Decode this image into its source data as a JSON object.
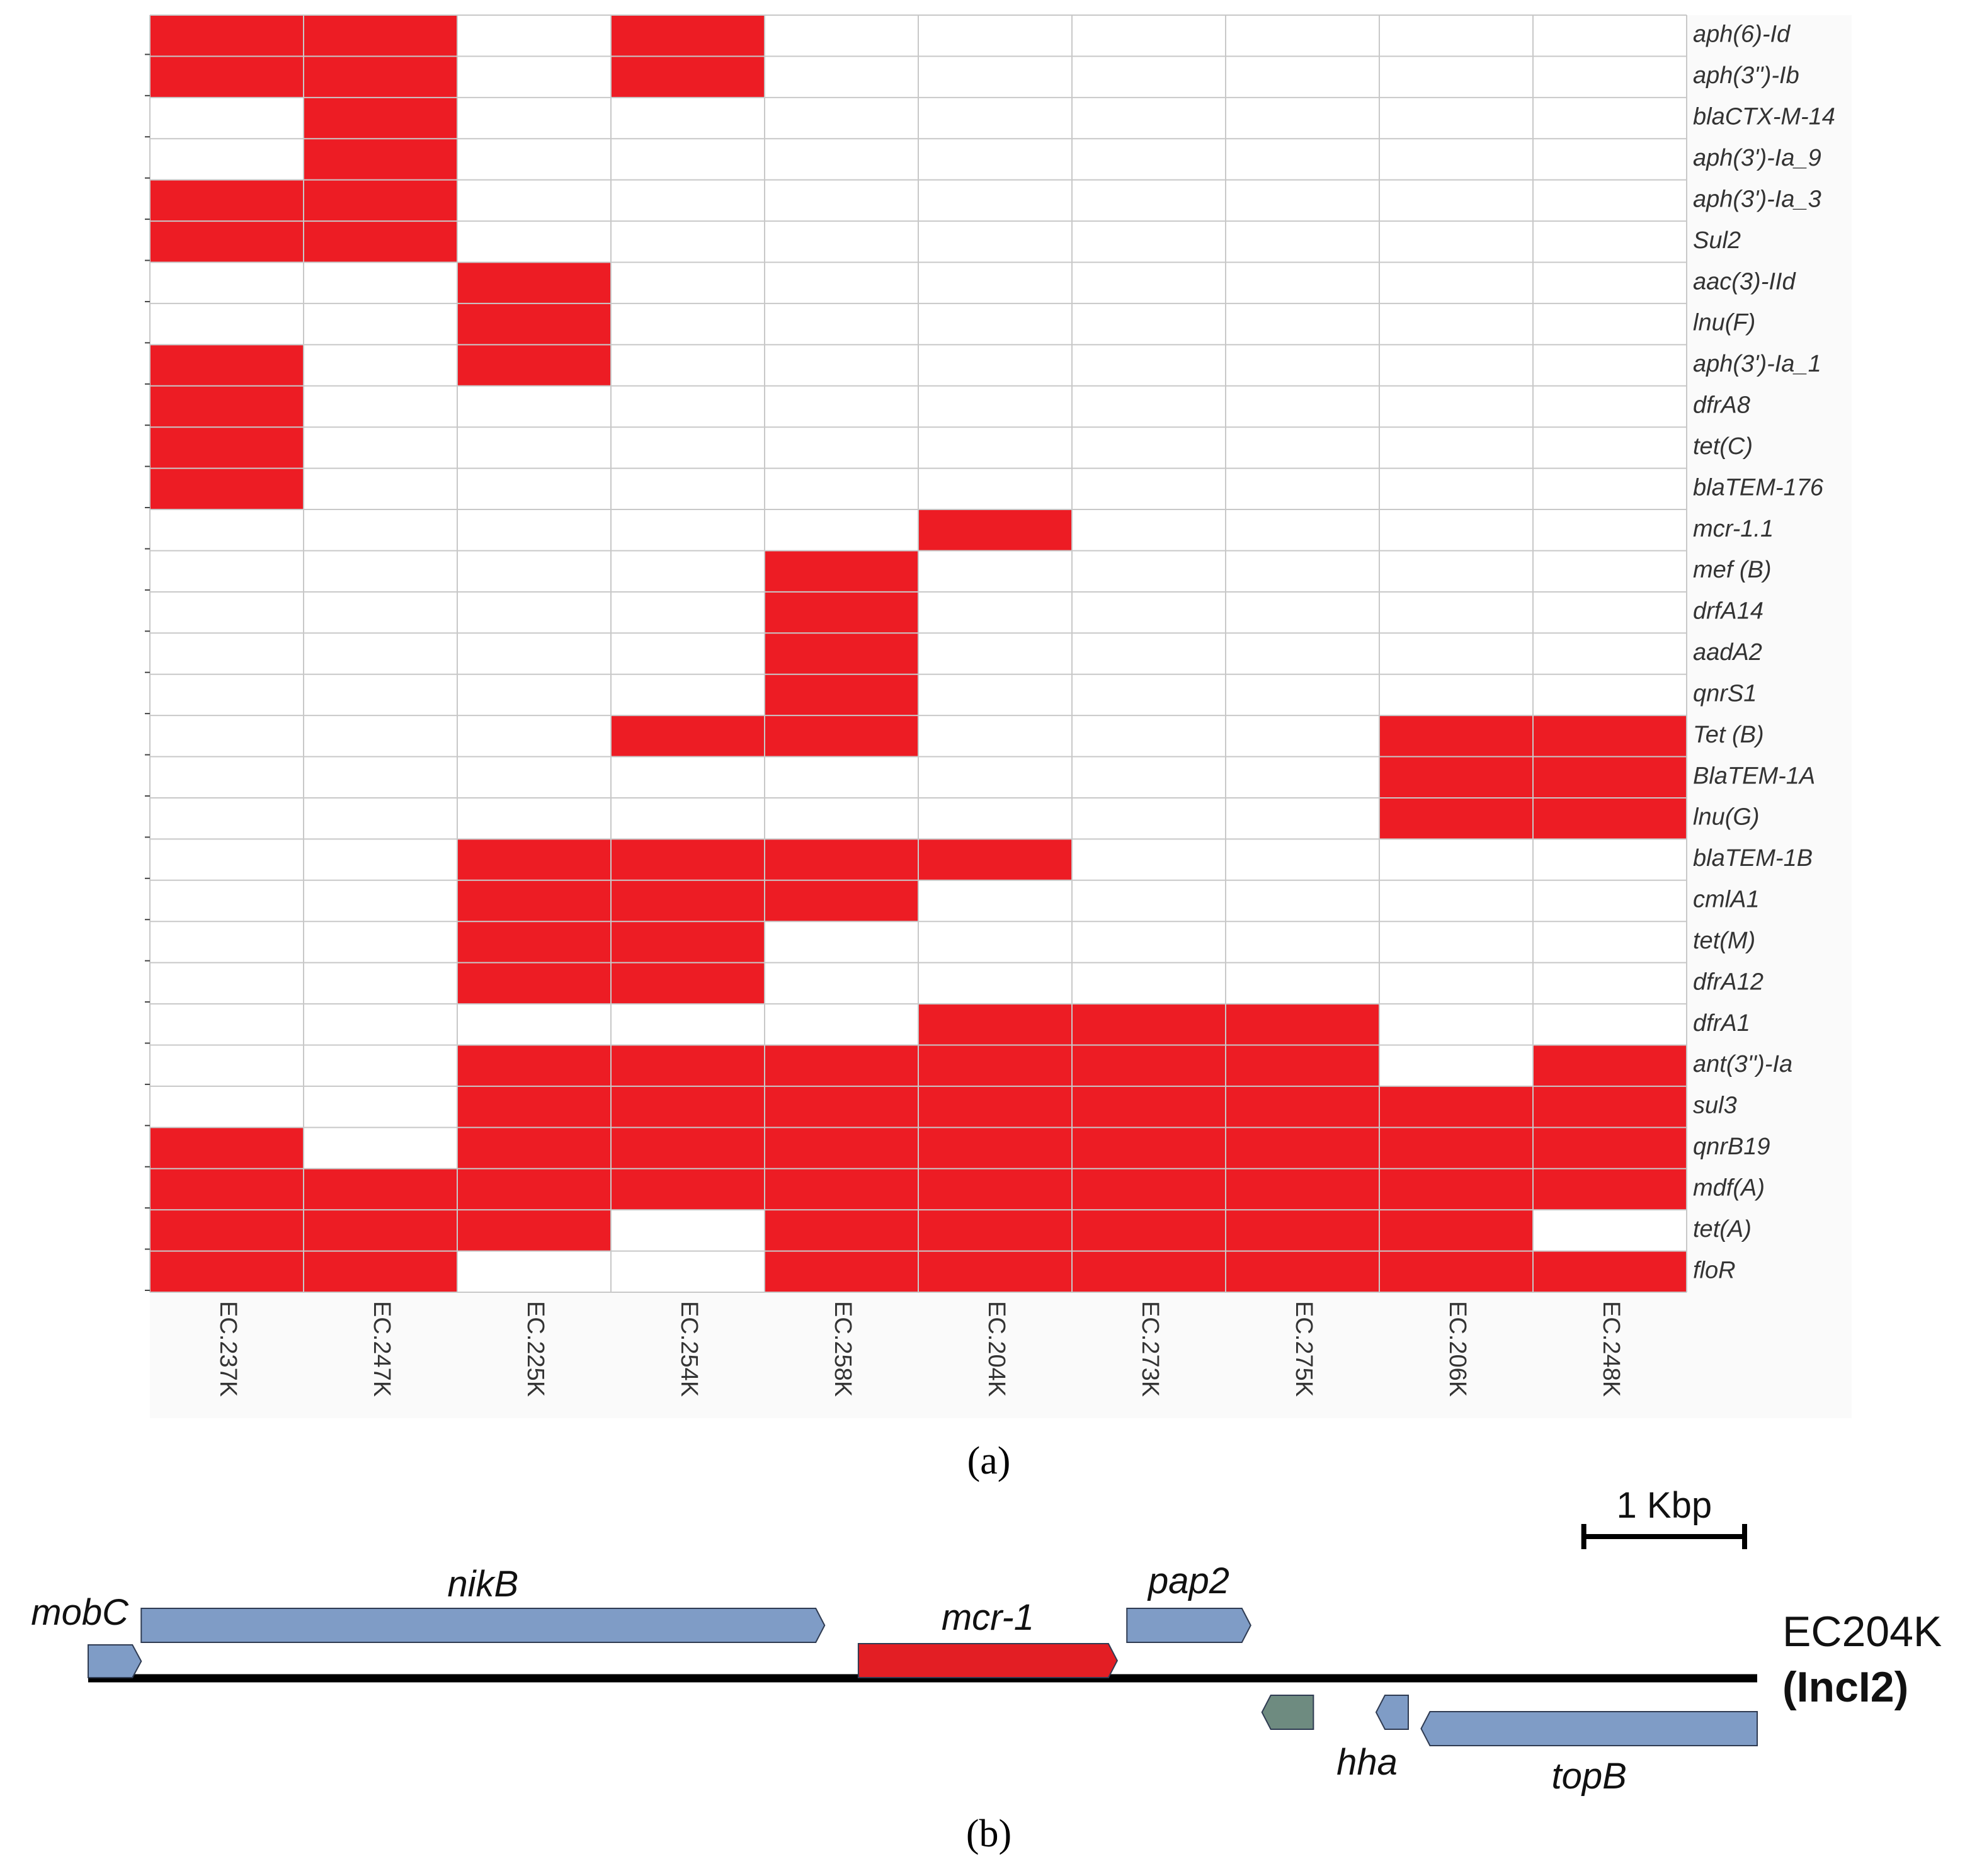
{
  "chart_data": [
    {
      "type": "heatmap",
      "panel_label": "a",
      "columns": [
        "EC.237K",
        "EC.247K",
        "EC.225K",
        "EC.254K",
        "EC.258K",
        "EC.204K",
        "EC.273K",
        "EC.275K",
        "EC.206K",
        "EC.248K"
      ],
      "rows": [
        "aph(6)-Id",
        "aph(3'')-Ib",
        "blaCTX-M-14",
        "aph(3')-Ia_9",
        "aph(3')-Ia_3",
        "Sul2",
        "aac(3)-IId",
        "lnu(F)",
        "aph(3')-Ia_1",
        "dfrA8",
        "tet(C)",
        "blaTEM-176",
        "mcr-1.1",
        "mef (B)",
        "drfA14",
        "aadA2",
        "qnrS1",
        "Tet (B)",
        "BlaTEM-1A",
        "lnu(G)",
        "blaTEM-1B",
        "cmlA1",
        "tet(M)",
        "dfrA12",
        "dfrA1",
        "ant(3'')-Ia",
        "sul3",
        "qnrB19",
        "mdf(A)",
        "tet(A)",
        "floR"
      ],
      "values": [
        [
          1,
          1,
          0,
          1,
          0,
          0,
          0,
          0,
          0,
          0
        ],
        [
          1,
          1,
          0,
          1,
          0,
          0,
          0,
          0,
          0,
          0
        ],
        [
          0,
          1,
          0,
          0,
          0,
          0,
          0,
          0,
          0,
          0
        ],
        [
          0,
          1,
          0,
          0,
          0,
          0,
          0,
          0,
          0,
          0
        ],
        [
          1,
          1,
          0,
          0,
          0,
          0,
          0,
          0,
          0,
          0
        ],
        [
          1,
          1,
          0,
          0,
          0,
          0,
          0,
          0,
          0,
          0
        ],
        [
          0,
          0,
          1,
          0,
          0,
          0,
          0,
          0,
          0,
          0
        ],
        [
          0,
          0,
          1,
          0,
          0,
          0,
          0,
          0,
          0,
          0
        ],
        [
          1,
          0,
          1,
          0,
          0,
          0,
          0,
          0,
          0,
          0
        ],
        [
          1,
          0,
          0,
          0,
          0,
          0,
          0,
          0,
          0,
          0
        ],
        [
          1,
          0,
          0,
          0,
          0,
          0,
          0,
          0,
          0,
          0
        ],
        [
          1,
          0,
          0,
          0,
          0,
          0,
          0,
          0,
          0,
          0
        ],
        [
          0,
          0,
          0,
          0,
          0,
          1,
          0,
          0,
          0,
          0
        ],
        [
          0,
          0,
          0,
          0,
          1,
          0,
          0,
          0,
          0,
          0
        ],
        [
          0,
          0,
          0,
          0,
          1,
          0,
          0,
          0,
          0,
          0
        ],
        [
          0,
          0,
          0,
          0,
          1,
          0,
          0,
          0,
          0,
          0
        ],
        [
          0,
          0,
          0,
          0,
          1,
          0,
          0,
          0,
          0,
          0
        ],
        [
          0,
          0,
          0,
          1,
          1,
          0,
          0,
          0,
          1,
          1
        ],
        [
          0,
          0,
          0,
          0,
          0,
          0,
          0,
          0,
          1,
          1
        ],
        [
          0,
          0,
          0,
          0,
          0,
          0,
          0,
          0,
          1,
          1
        ],
        [
          0,
          0,
          1,
          1,
          1,
          1,
          0,
          0,
          0,
          0
        ],
        [
          0,
          0,
          1,
          1,
          1,
          0,
          0,
          0,
          0,
          0
        ],
        [
          0,
          0,
          1,
          1,
          0,
          0,
          0,
          0,
          0,
          0
        ],
        [
          0,
          0,
          1,
          1,
          0,
          0,
          0,
          0,
          0,
          0
        ],
        [
          0,
          0,
          0,
          0,
          0,
          1,
          1,
          1,
          0,
          0
        ],
        [
          0,
          0,
          1,
          1,
          1,
          1,
          1,
          1,
          0,
          1
        ],
        [
          0,
          0,
          1,
          1,
          1,
          1,
          1,
          1,
          1,
          1
        ],
        [
          1,
          0,
          1,
          1,
          1,
          1,
          1,
          1,
          1,
          1
        ],
        [
          1,
          1,
          1,
          1,
          1,
          1,
          1,
          1,
          1,
          1
        ],
        [
          1,
          1,
          1,
          0,
          1,
          1,
          1,
          1,
          1,
          0
        ],
        [
          1,
          1,
          0,
          0,
          1,
          1,
          1,
          1,
          1,
          1
        ]
      ],
      "legend": "none"
    },
    {
      "type": "gene-map",
      "panel_label": "b",
      "plasmid_name": "EC204K",
      "plasmid_type": "(IncI2)",
      "scale_label": "1 Kbp",
      "unit_kbp": 1,
      "genes": [
        {
          "name": "mobC",
          "start_kbp": 0.0,
          "end_kbp": 0.33,
          "strand": "+",
          "color": "#7f9cc6"
        },
        {
          "name": "nikB",
          "start_kbp": 0.33,
          "end_kbp": 4.58,
          "strand": "+",
          "color": "#7f9cc6"
        },
        {
          "name": "mcr-1",
          "start_kbp": 4.79,
          "end_kbp": 6.4,
          "strand": "+",
          "color": "#e31e24"
        },
        {
          "name": "pap2",
          "start_kbp": 6.46,
          "end_kbp": 7.23,
          "strand": "+",
          "color": "#7f9cc6"
        },
        {
          "name": "",
          "start_kbp": 7.3,
          "end_kbp": 7.62,
          "strand": "-",
          "color": "#6e8b80"
        },
        {
          "name": "hha",
          "start_kbp": 8.01,
          "end_kbp": 8.21,
          "strand": "-",
          "color": "#7f9cc6"
        },
        {
          "name": "topB",
          "start_kbp": 8.29,
          "end_kbp": 10.38,
          "strand": "-",
          "color": "#7f9cc6"
        }
      ],
      "sequence_length_kbp": 10.38
    }
  ],
  "colors": {
    "present": "#ed1c24",
    "absent": "#ffffff",
    "grid": "#c8c8c8"
  }
}
